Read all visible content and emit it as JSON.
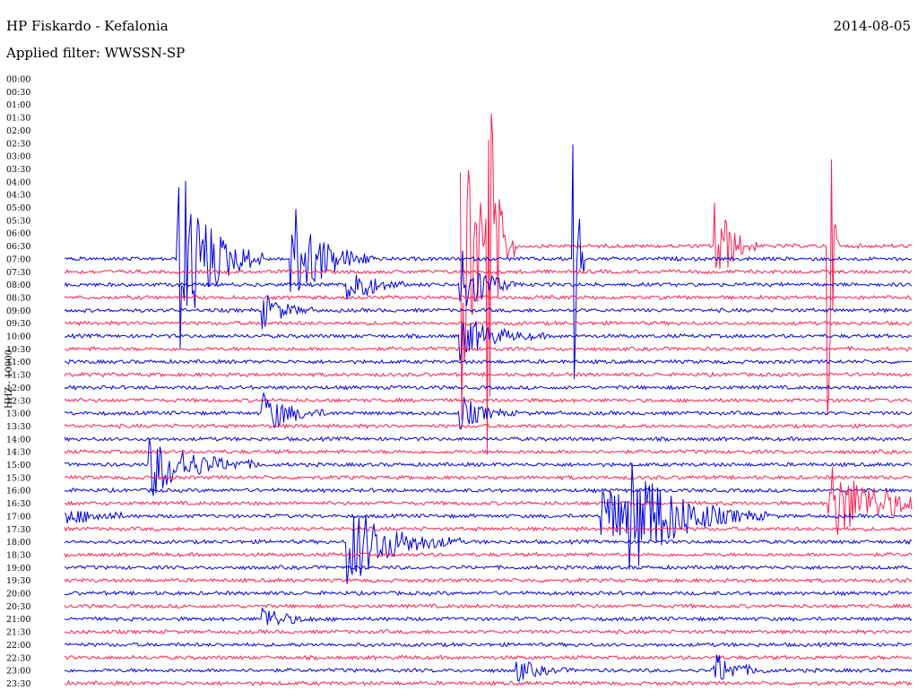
{
  "header": {
    "station": "HP Fiskardo - Kefalonia",
    "filter": "Applied filter: WWSSN-SP",
    "date": "2014-08-05"
  },
  "chart_data": {
    "type": "line",
    "title": "HP Fiskardo - Kefalonia",
    "subtitle": "Applied filter: WWSSN-SP",
    "date": "2014-08-05",
    "ylabel": "HHZ - 10000",
    "time_labels": [
      "00:00",
      "00:30",
      "01:00",
      "01:30",
      "02:00",
      "02:30",
      "03:00",
      "03:30",
      "04:00",
      "04:30",
      "05:00",
      "05:30",
      "06:00",
      "06:30",
      "07:00",
      "07:30",
      "08:00",
      "08:30",
      "09:00",
      "09:30",
      "10:00",
      "10:30",
      "11:00",
      "11:30",
      "12:00",
      "12:30",
      "13:00",
      "13:30",
      "14:00",
      "14:30",
      "15:00",
      "15:30",
      "16:00",
      "16:30",
      "17:00",
      "17:30",
      "18:00",
      "18:30",
      "19:00",
      "19:30",
      "20:00",
      "20:30",
      "21:00",
      "21:30",
      "22:00",
      "22:30",
      "23:00",
      "23:30"
    ],
    "trace_start": "06:30",
    "trace_start_minute": 14,
    "minutes_per_row": 30,
    "grid": false,
    "colors": {
      "odd_rows": "#ff1e50",
      "even_rows": "#0000dd"
    },
    "events": [
      {
        "time": "06:45",
        "amplitude": 1.0,
        "duration_min": 0.5
      },
      {
        "time": "06:57",
        "amplitude": 1.0,
        "duration_min": 0.4
      },
      {
        "time": "07:18",
        "amplitude": 1.0,
        "duration_min": 0.4
      },
      {
        "time": "06:44",
        "amplitude": 0.8,
        "duration_min": 2.0
      },
      {
        "time": "07:04",
        "amplitude": 0.45,
        "duration_min": 3.0
      },
      {
        "time": "06:53",
        "amplitude": 0.25,
        "duration_min": 1.5
      },
      {
        "time": "08:14",
        "amplitude": 0.2,
        "duration_min": 2.0
      },
      {
        "time": "07:08",
        "amplitude": 0.25,
        "duration_min": 3.0
      },
      {
        "time": "08:10",
        "amplitude": 0.12,
        "duration_min": 2.0
      },
      {
        "time": "09:07",
        "amplitude": 0.08,
        "duration_min": 2.0
      },
      {
        "time": "10:14",
        "amplitude": 0.1,
        "duration_min": 3.0
      },
      {
        "time": "13:07",
        "amplitude": 0.1,
        "duration_min": 2.5
      },
      {
        "time": "13:14",
        "amplitude": 0.08,
        "duration_min": 2.0
      },
      {
        "time": "15:03",
        "amplitude": 0.15,
        "duration_min": 4.0
      },
      {
        "time": "16:57",
        "amplitude": 0.18,
        "duration_min": 5.0
      },
      {
        "time": "17:20",
        "amplitude": 0.2,
        "duration_min": 5.0
      },
      {
        "time": "18:10",
        "amplitude": 0.2,
        "duration_min": 4.0
      },
      {
        "time": "17:19",
        "amplitude": 0.15,
        "duration_min": 4.0
      },
      {
        "time": "21:07",
        "amplitude": 0.06,
        "duration_min": 2.0
      },
      {
        "time": "23:23",
        "amplitude": 0.08,
        "duration_min": 2.0
      },
      {
        "time": "23:16",
        "amplitude": 0.05,
        "duration_min": 2.0
      }
    ]
  }
}
